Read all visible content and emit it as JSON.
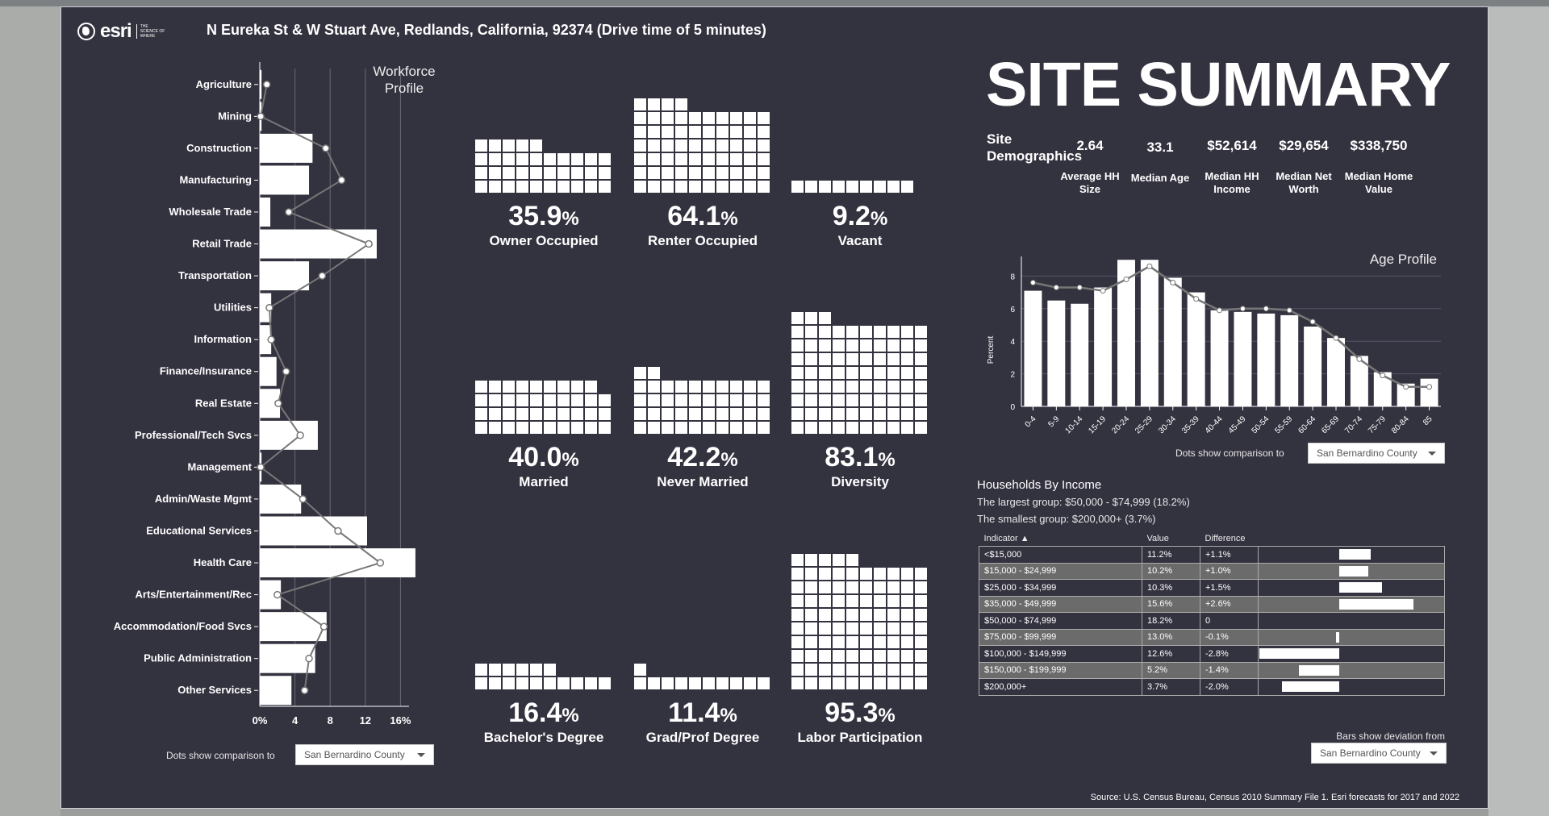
{
  "header": {
    "logo_text": "esri",
    "logo_tagline": "THE SCIENCE OF WHERE",
    "title": "N Eureka St & W Stuart Ave, Redlands, California, 92374 (Drive time of 5 minutes)"
  },
  "workforce": {
    "title": "Workforce Profile",
    "comparison_label": "Dots show comparison to",
    "comparison_value": "San Bernardino County"
  },
  "waffles": [
    {
      "value": "35.9",
      "pct": "%",
      "label": "Owner Occupied",
      "squares": 35
    },
    {
      "value": "64.1",
      "pct": "%",
      "label": "Renter Occupied",
      "squares": 64
    },
    {
      "value": "9.2",
      "pct": "%",
      "label": "Vacant",
      "squares": 9
    },
    {
      "value": "40.0",
      "pct": "%",
      "label": "Married",
      "squares": 39
    },
    {
      "value": "42.2",
      "pct": "%",
      "label": "Never Married",
      "squares": 42
    },
    {
      "value": "83.1",
      "pct": "%",
      "label": "Diversity",
      "squares": 83
    },
    {
      "value": "16.4",
      "pct": "%",
      "label": "Bachelor's Degree",
      "squares": 16
    },
    {
      "value": "11.4",
      "pct": "%",
      "label": "Grad/Prof Degree",
      "squares": 11
    },
    {
      "value": "95.3",
      "pct": "%",
      "label": "Labor Participation",
      "squares": 95
    }
  ],
  "summary": {
    "title": "SITE SUMMARY",
    "demographics_label": "Site Demographics",
    "items": [
      {
        "value": "2.64",
        "label": "Average HH Size"
      },
      {
        "value": "33.1",
        "label": "Median Age"
      },
      {
        "value": "$52,614",
        "label": "Median HH Income"
      },
      {
        "value": "$29,654",
        "label": "Median Net Worth"
      },
      {
        "value": "$338,750",
        "label": "Median Home Value"
      }
    ]
  },
  "age": {
    "comparison_label": "Dots show comparison to",
    "comparison_value": "San Bernardino County"
  },
  "income": {
    "title": "Households By Income",
    "largest": "The largest group: $50,000 - $74,999 (18.2%)",
    "smallest": "The smallest group: $200,000+ (3.7%)",
    "columns": [
      "Indicator ▲",
      "Value",
      "Difference"
    ],
    "rows": [
      {
        "indicator": "<$15,000",
        "value": "11.2%",
        "diff": "+1.1%"
      },
      {
        "indicator": "$15,000 - $24,999",
        "value": "10.2%",
        "diff": "+1.0%"
      },
      {
        "indicator": "$25,000 - $34,999",
        "value": "10.3%",
        "diff": "+1.5%"
      },
      {
        "indicator": "$35,000 - $49,999",
        "value": "15.6%",
        "diff": "+2.6%"
      },
      {
        "indicator": "$50,000 - $74,999",
        "value": "18.2%",
        "diff": "0"
      },
      {
        "indicator": "$75,000 - $99,999",
        "value": "13.0%",
        "diff": "-0.1%"
      },
      {
        "indicator": "$100,000 - $149,999",
        "value": "12.6%",
        "diff": "-2.8%"
      },
      {
        "indicator": "$150,000 - $199,999",
        "value": "5.2%",
        "diff": "-1.4%"
      },
      {
        "indicator": "$200,000+",
        "value": "3.7%",
        "diff": "-2.0%"
      }
    ],
    "deviation_label": "Bars show deviation from",
    "deviation_value": "San Bernardino County"
  },
  "source": "Source: U.S. Census Bureau, Census 2010 Summary File 1. Esri forecasts for 2017 and 2022",
  "colors": {
    "panel": "#33323f",
    "bar": "#ffffff",
    "line": "#777777"
  },
  "chart_data": [
    {
      "type": "bar",
      "orientation": "horizontal",
      "title": "Workforce Profile",
      "categories": [
        "Agriculture",
        "Mining",
        "Construction",
        "Manufacturing",
        "Wholesale Trade",
        "Retail Trade",
        "Transportation",
        "Utilities",
        "Information",
        "Finance/Insurance",
        "Real Estate",
        "Professional/Tech Svcs",
        "Management",
        "Admin/Waste Mgmt",
        "Educational Services",
        "Health Care",
        "Arts/Entertainment/Rec",
        "Accommodation/Food Svcs",
        "Public Administration",
        "Other Services"
      ],
      "series": [
        {
          "name": "Site",
          "values": [
            0.2,
            0.2,
            6.0,
            5.6,
            1.2,
            13.3,
            5.6,
            1.3,
            1.3,
            1.9,
            2.3,
            6.6,
            0.2,
            4.7,
            12.2,
            17.7,
            2.4,
            7.6,
            6.3,
            3.6
          ]
        },
        {
          "name": "San Bernardino County",
          "values": [
            0.8,
            0.1,
            7.5,
            9.3,
            3.3,
            12.4,
            7.1,
            1.1,
            1.3,
            3.0,
            2.1,
            4.6,
            0.1,
            4.9,
            8.9,
            13.7,
            2.0,
            7.3,
            5.6,
            5.1
          ]
        }
      ],
      "xticks": [
        "0%",
        "4",
        "8",
        "12",
        "16%"
      ],
      "xlim": [
        0,
        18.5
      ],
      "grid": true
    },
    {
      "type": "bar",
      "title": "Age Profile",
      "ylabel": "Percent",
      "categories": [
        "0-4",
        "5-9",
        "10-14",
        "15-19",
        "20-24",
        "25-29",
        "30-34",
        "35-39",
        "40-44",
        "45-49",
        "50-54",
        "55-59",
        "60-64",
        "65-69",
        "70-74",
        "75-79",
        "80-84",
        "85"
      ],
      "series": [
        {
          "name": "Site",
          "values": [
            7.1,
            6.5,
            6.3,
            7.3,
            9.0,
            9.0,
            7.9,
            7.0,
            5.9,
            5.8,
            5.7,
            5.6,
            4.9,
            4.2,
            3.1,
            2.1,
            1.4,
            1.7
          ]
        },
        {
          "name": "San Bernardino County",
          "values": [
            7.6,
            7.3,
            7.3,
            7.1,
            7.8,
            8.6,
            7.6,
            6.6,
            5.9,
            6.0,
            6.0,
            5.9,
            5.2,
            4.2,
            2.9,
            1.9,
            1.2,
            1.2
          ]
        }
      ],
      "yticks": [
        "0",
        "2",
        "4",
        "6",
        "8"
      ],
      "ylim": [
        0,
        9.2
      ],
      "grid": true
    }
  ]
}
